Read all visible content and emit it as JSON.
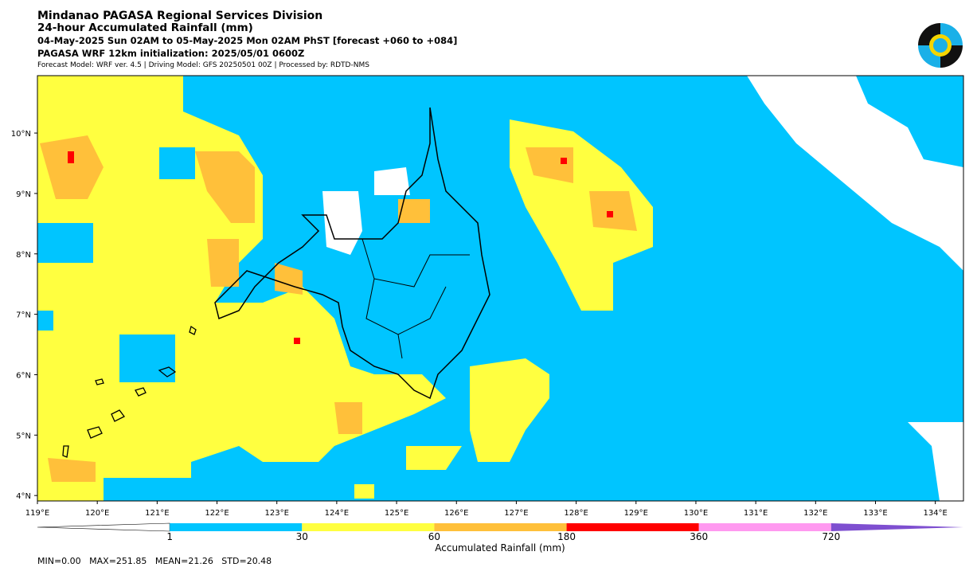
{
  "header": {
    "title": "Mindanao PAGASA Regional Services Division",
    "subtitle": "24-hour Accumulated Rainfall (mm)",
    "period": "04-May-2025 Sun 02AM to 05-May-2025 Mon 02AM PhST [forecast +060 to +084]",
    "init": "PAGASA WRF 12km initialization: 2025/05/01 0600Z",
    "model": "Forecast Model: WRF ver. 4.5 | Driving Model: GFS 20250501 00Z | Processed by: RDTD-NMS"
  },
  "map": {
    "xlim": [
      119,
      134.47
    ],
    "ylim": [
      3.91,
      10.95
    ],
    "xticks": [
      {
        "value": 119,
        "label": "119°E"
      },
      {
        "value": 120,
        "label": "120°E"
      },
      {
        "value": 121,
        "label": "121°E"
      },
      {
        "value": 122,
        "label": "122°E"
      },
      {
        "value": 123,
        "label": "123°E"
      },
      {
        "value": 124,
        "label": "124°E"
      },
      {
        "value": 125,
        "label": "125°E"
      },
      {
        "value": 126,
        "label": "126°E"
      },
      {
        "value": 127,
        "label": "127°E"
      },
      {
        "value": 128,
        "label": "128°E"
      },
      {
        "value": 129,
        "label": "129°E"
      },
      {
        "value": 130,
        "label": "130°E"
      },
      {
        "value": 131,
        "label": "131°E"
      },
      {
        "value": 132,
        "label": "132°E"
      },
      {
        "value": 133,
        "label": "133°E"
      },
      {
        "value": 134,
        "label": "134°E"
      }
    ],
    "yticks": [
      {
        "value": 4,
        "label": "4°N"
      },
      {
        "value": 5,
        "label": "5°N"
      },
      {
        "value": 6,
        "label": "6°N"
      },
      {
        "value": 7,
        "label": "7°N"
      },
      {
        "value": 8,
        "label": "8°N"
      },
      {
        "value": 9,
        "label": "9°N"
      },
      {
        "value": 10,
        "label": "10°N"
      }
    ]
  },
  "colorbar": {
    "label": "Accumulated Rainfall (mm)",
    "ticks": [
      1,
      30,
      60,
      180,
      360,
      720
    ],
    "colors": [
      "#00c5ff",
      "#ffff40",
      "#ffc03a",
      "#ff0000",
      "#ff99f0",
      "#7e4fd0"
    ]
  },
  "stats": "MIN=0.00   MAX=251.85   MEAN=21.26   STD=20.48"
}
